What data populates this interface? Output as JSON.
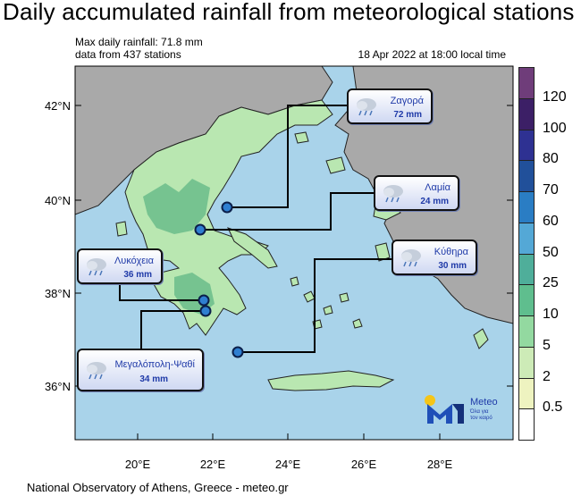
{
  "title": "Daily accumulated rainfall from meteorological stations",
  "max_line": "Max daily rainfall: 71.8 mm",
  "stations_line": "data from 437 stations",
  "date_line": "18 Apr 2022 at 18:00 local time",
  "footer": "National Observatory of Athens, Greece - meteo.gr",
  "map": {
    "lat_ticks": [
      "42°N",
      "40°N",
      "38°N",
      "36°N"
    ],
    "lon_ticks": [
      "20°E",
      "22°E",
      "24°E",
      "26°E",
      "28°E"
    ],
    "colors": {
      "sea": "#a9d3ea",
      "land_other": "#a9a9a9",
      "greece_low": "#b9e7b1",
      "greece_mid": "#6fbf8d"
    }
  },
  "colorbar": {
    "labels": [
      "120",
      "100",
      "80",
      "70",
      "60",
      "50",
      "25",
      "10",
      "5",
      "2",
      "0.5"
    ],
    "colors": [
      "#6f3d7a",
      "#3c1f66",
      "#2e3192",
      "#21509a",
      "#2a7dc4",
      "#54a8d6",
      "#4fae9a",
      "#5fbe8e",
      "#93d9a0",
      "#cdebb7",
      "#eef3c0",
      "#ffffff"
    ]
  },
  "stations": [
    {
      "name": "Ζαγορά",
      "value": "72 mm",
      "icon": "rain-cloud-icon"
    },
    {
      "name": "Λαμία",
      "value": "24 mm",
      "icon": "rain-cloud-icon"
    },
    {
      "name": "Κύθηρα",
      "value": "30 mm",
      "icon": "rain-cloud-icon"
    },
    {
      "name": "Λυκόχεια",
      "value": "36 mm",
      "icon": "rain-cloud-icon"
    },
    {
      "name": "Μεγαλόπολη-Ψαθί",
      "value": "34 mm",
      "icon": "rain-cloud-icon"
    }
  ],
  "logo": {
    "name": "Meteo",
    "tagline_1": "Όλα για",
    "tagline_2": "τον καιρό"
  }
}
